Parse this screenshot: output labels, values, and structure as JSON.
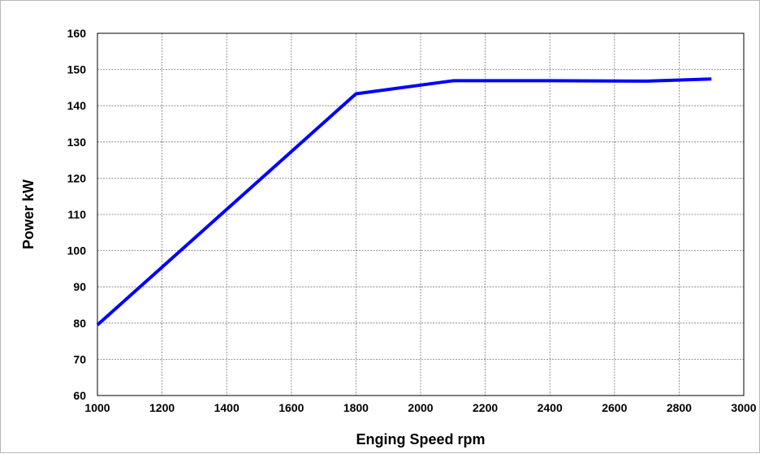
{
  "chart_data": {
    "type": "line",
    "title": "",
    "xlabel": "Enging Speed rpm",
    "ylabel": "Power kW",
    "xlim": [
      1000,
      3000
    ],
    "ylim": [
      60,
      160
    ],
    "x_ticks": [
      1000,
      1200,
      1400,
      1600,
      1800,
      2000,
      2200,
      2400,
      2600,
      2800,
      3000
    ],
    "y_ticks": [
      60,
      70,
      80,
      90,
      100,
      110,
      120,
      130,
      140,
      150,
      160
    ],
    "grid": true,
    "series": [
      {
        "color": "#0000ff",
        "x": [
          1000,
          1800,
          2100,
          2400,
          2700,
          2900
        ],
        "y": [
          79.5,
          143.3,
          146.9,
          146.9,
          146.8,
          147.4
        ]
      }
    ]
  }
}
